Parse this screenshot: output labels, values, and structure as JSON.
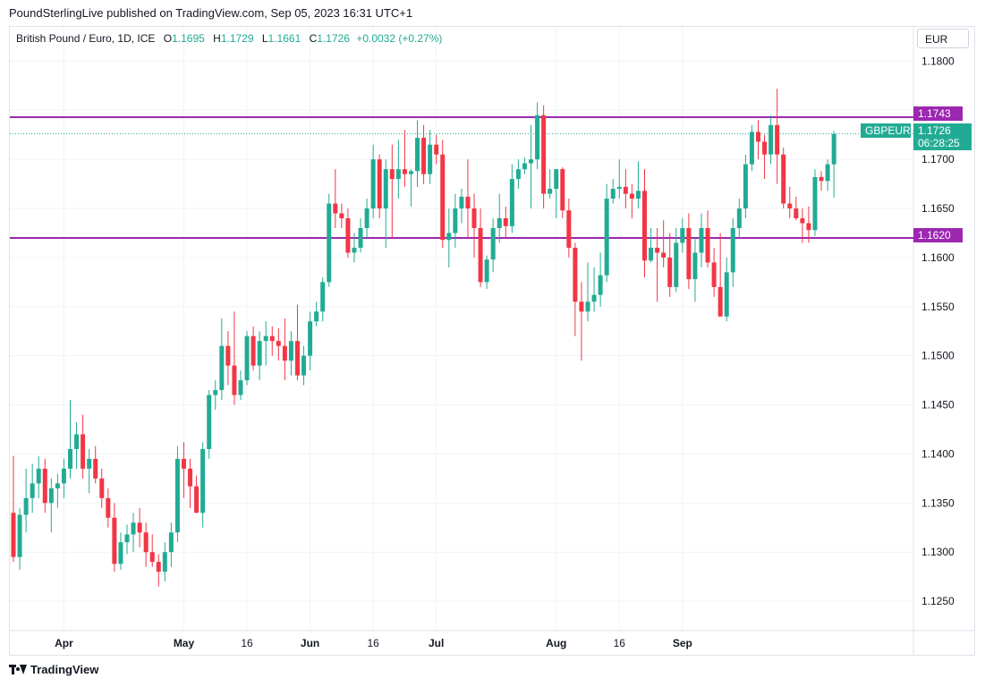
{
  "publisher_line": "PoundSterlingLive published on TradingView.com, Sep 05, 2023 16:31 UTC+1",
  "legend": {
    "symbol": "British Pound / Euro, 1D, ICE",
    "o_label": "O",
    "o_value": "1.1695",
    "h_label": "H",
    "h_value": "1.1729",
    "l_label": "L",
    "l_value": "1.1661",
    "c_label": "C",
    "c_value": "1.1726",
    "change": "+0.0032 (+0.27%)"
  },
  "currency_button": "EUR",
  "footer_brand": "TradingView",
  "price_tags": {
    "resistance": "1.1743",
    "support": "1.1620",
    "symbol_tag": "GBPEUR",
    "last": "1.1726",
    "countdown": "06:28:25"
  },
  "colors": {
    "up": "#22ab94",
    "down": "#f23645",
    "level_line": "#9c27b0",
    "grid": "#f0f3fa"
  },
  "chart_data": {
    "type": "candlestick",
    "title": "British Pound / Euro, 1D, ICE",
    "y_axis_position": "right",
    "ylim": [
      1.122,
      1.1835
    ],
    "y_ticks": [
      "1.1800",
      "1.1750",
      "1.1700",
      "1.1650",
      "1.1600",
      "1.1550",
      "1.1500",
      "1.1450",
      "1.1400",
      "1.1350",
      "1.1300",
      "1.1250"
    ],
    "x_ticks": [
      "Apr",
      "May",
      "16",
      "Jun",
      "16",
      "Jul",
      "Aug",
      "16",
      "Sep"
    ],
    "x_tick_index": [
      8,
      27,
      37,
      47,
      57,
      67,
      86,
      96,
      106
    ],
    "grid": true,
    "horizontal_levels": [
      1.1743,
      1.162
    ],
    "last_price": 1.1726,
    "candles": [
      {
        "o": 1.134,
        "h": 1.1398,
        "l": 1.129,
        "c": 1.1295
      },
      {
        "o": 1.1295,
        "h": 1.1345,
        "l": 1.1282,
        "c": 1.1338
      },
      {
        "o": 1.1338,
        "h": 1.1385,
        "l": 1.132,
        "c": 1.1355
      },
      {
        "o": 1.1355,
        "h": 1.139,
        "l": 1.134,
        "c": 1.137
      },
      {
        "o": 1.137,
        "h": 1.1398,
        "l": 1.1355,
        "c": 1.1385
      },
      {
        "o": 1.1385,
        "h": 1.1395,
        "l": 1.134,
        "c": 1.135
      },
      {
        "o": 1.135,
        "h": 1.1375,
        "l": 1.132,
        "c": 1.1365
      },
      {
        "o": 1.1365,
        "h": 1.138,
        "l": 1.1345,
        "c": 1.137
      },
      {
        "o": 1.137,
        "h": 1.1395,
        "l": 1.1355,
        "c": 1.1385
      },
      {
        "o": 1.1385,
        "h": 1.1455,
        "l": 1.1375,
        "c": 1.1405
      },
      {
        "o": 1.1405,
        "h": 1.1432,
        "l": 1.1385,
        "c": 1.142
      },
      {
        "o": 1.142,
        "h": 1.144,
        "l": 1.1375,
        "c": 1.1385
      },
      {
        "o": 1.1385,
        "h": 1.1405,
        "l": 1.136,
        "c": 1.1395
      },
      {
        "o": 1.1395,
        "h": 1.1408,
        "l": 1.137,
        "c": 1.1375
      },
      {
        "o": 1.1375,
        "h": 1.1385,
        "l": 1.1345,
        "c": 1.1355
      },
      {
        "o": 1.1355,
        "h": 1.1365,
        "l": 1.1325,
        "c": 1.1335
      },
      {
        "o": 1.1335,
        "h": 1.135,
        "l": 1.128,
        "c": 1.1288
      },
      {
        "o": 1.1288,
        "h": 1.132,
        "l": 1.1282,
        "c": 1.131
      },
      {
        "o": 1.131,
        "h": 1.1328,
        "l": 1.1298,
        "c": 1.1318
      },
      {
        "o": 1.1318,
        "h": 1.134,
        "l": 1.13,
        "c": 1.133
      },
      {
        "o": 1.133,
        "h": 1.1345,
        "l": 1.1305,
        "c": 1.132
      },
      {
        "o": 1.132,
        "h": 1.133,
        "l": 1.1285,
        "c": 1.13
      },
      {
        "o": 1.13,
        "h": 1.1318,
        "l": 1.1285,
        "c": 1.129
      },
      {
        "o": 1.129,
        "h": 1.1298,
        "l": 1.1265,
        "c": 1.128
      },
      {
        "o": 1.128,
        "h": 1.131,
        "l": 1.127,
        "c": 1.13
      },
      {
        "o": 1.13,
        "h": 1.133,
        "l": 1.1285,
        "c": 1.132
      },
      {
        "o": 1.132,
        "h": 1.1408,
        "l": 1.131,
        "c": 1.1395
      },
      {
        "o": 1.1395,
        "h": 1.1412,
        "l": 1.1355,
        "c": 1.1385
      },
      {
        "o": 1.1385,
        "h": 1.1395,
        "l": 1.1345,
        "c": 1.1367
      },
      {
        "o": 1.1367,
        "h": 1.1378,
        "l": 1.134,
        "c": 1.134
      },
      {
        "o": 1.134,
        "h": 1.1412,
        "l": 1.1325,
        "c": 1.1405
      },
      {
        "o": 1.1405,
        "h": 1.1465,
        "l": 1.1395,
        "c": 1.146
      },
      {
        "o": 1.146,
        "h": 1.1475,
        "l": 1.1445,
        "c": 1.1465
      },
      {
        "o": 1.1465,
        "h": 1.1538,
        "l": 1.1455,
        "c": 1.151
      },
      {
        "o": 1.151,
        "h": 1.1525,
        "l": 1.147,
        "c": 1.149
      },
      {
        "o": 1.149,
        "h": 1.1545,
        "l": 1.145,
        "c": 1.146
      },
      {
        "o": 1.146,
        "h": 1.1485,
        "l": 1.1455,
        "c": 1.1475
      },
      {
        "o": 1.1475,
        "h": 1.1525,
        "l": 1.147,
        "c": 1.152
      },
      {
        "o": 1.152,
        "h": 1.153,
        "l": 1.1485,
        "c": 1.149
      },
      {
        "o": 1.149,
        "h": 1.1525,
        "l": 1.1475,
        "c": 1.1515
      },
      {
        "o": 1.1515,
        "h": 1.1535,
        "l": 1.149,
        "c": 1.152
      },
      {
        "o": 1.152,
        "h": 1.153,
        "l": 1.15,
        "c": 1.1515
      },
      {
        "o": 1.1515,
        "h": 1.1528,
        "l": 1.1495,
        "c": 1.151
      },
      {
        "o": 1.151,
        "h": 1.1538,
        "l": 1.1475,
        "c": 1.1495
      },
      {
        "o": 1.1495,
        "h": 1.1525,
        "l": 1.148,
        "c": 1.1515
      },
      {
        "o": 1.1515,
        "h": 1.1552,
        "l": 1.1475,
        "c": 1.148
      },
      {
        "o": 1.148,
        "h": 1.151,
        "l": 1.147,
        "c": 1.15
      },
      {
        "o": 1.15,
        "h": 1.1545,
        "l": 1.1485,
        "c": 1.1535
      },
      {
        "o": 1.1535,
        "h": 1.1555,
        "l": 1.153,
        "c": 1.1545
      },
      {
        "o": 1.1545,
        "h": 1.158,
        "l": 1.1535,
        "c": 1.1575
      },
      {
        "o": 1.1575,
        "h": 1.1665,
        "l": 1.157,
        "c": 1.1655
      },
      {
        "o": 1.1655,
        "h": 1.169,
        "l": 1.163,
        "c": 1.1645
      },
      {
        "o": 1.1645,
        "h": 1.1655,
        "l": 1.163,
        "c": 1.164
      },
      {
        "o": 1.164,
        "h": 1.165,
        "l": 1.16,
        "c": 1.1605
      },
      {
        "o": 1.1605,
        "h": 1.1625,
        "l": 1.1595,
        "c": 1.161
      },
      {
        "o": 1.161,
        "h": 1.164,
        "l": 1.1605,
        "c": 1.163
      },
      {
        "o": 1.163,
        "h": 1.166,
        "l": 1.162,
        "c": 1.165
      },
      {
        "o": 1.165,
        "h": 1.1715,
        "l": 1.164,
        "c": 1.17
      },
      {
        "o": 1.17,
        "h": 1.1705,
        "l": 1.164,
        "c": 1.165
      },
      {
        "o": 1.165,
        "h": 1.17,
        "l": 1.161,
        "c": 1.169
      },
      {
        "o": 1.169,
        "h": 1.1715,
        "l": 1.162,
        "c": 1.168
      },
      {
        "o": 1.168,
        "h": 1.172,
        "l": 1.166,
        "c": 1.169
      },
      {
        "o": 1.169,
        "h": 1.173,
        "l": 1.1672,
        "c": 1.1685
      },
      {
        "o": 1.1685,
        "h": 1.169,
        "l": 1.1652,
        "c": 1.1688
      },
      {
        "o": 1.1688,
        "h": 1.174,
        "l": 1.1672,
        "c": 1.1722
      },
      {
        "o": 1.1722,
        "h": 1.1735,
        "l": 1.1675,
        "c": 1.1685
      },
      {
        "o": 1.1685,
        "h": 1.173,
        "l": 1.1675,
        "c": 1.1715
      },
      {
        "o": 1.1715,
        "h": 1.1725,
        "l": 1.1695,
        "c": 1.1705
      },
      {
        "o": 1.1705,
        "h": 1.172,
        "l": 1.161,
        "c": 1.1618
      },
      {
        "o": 1.1618,
        "h": 1.165,
        "l": 1.159,
        "c": 1.1625
      },
      {
        "o": 1.1625,
        "h": 1.1665,
        "l": 1.161,
        "c": 1.165
      },
      {
        "o": 1.165,
        "h": 1.167,
        "l": 1.1635,
        "c": 1.1662
      },
      {
        "o": 1.1662,
        "h": 1.17,
        "l": 1.162,
        "c": 1.165
      },
      {
        "o": 1.165,
        "h": 1.1665,
        "l": 1.16,
        "c": 1.163
      },
      {
        "o": 1.163,
        "h": 1.165,
        "l": 1.157,
        "c": 1.1575
      },
      {
        "o": 1.1575,
        "h": 1.1602,
        "l": 1.1568,
        "c": 1.1598
      },
      {
        "o": 1.1598,
        "h": 1.164,
        "l": 1.1585,
        "c": 1.163
      },
      {
        "o": 1.163,
        "h": 1.1665,
        "l": 1.1615,
        "c": 1.164
      },
      {
        "o": 1.164,
        "h": 1.1652,
        "l": 1.162,
        "c": 1.1632
      },
      {
        "o": 1.1632,
        "h": 1.1695,
        "l": 1.1625,
        "c": 1.168
      },
      {
        "o": 1.168,
        "h": 1.17,
        "l": 1.167,
        "c": 1.169
      },
      {
        "o": 1.169,
        "h": 1.1702,
        "l": 1.1685,
        "c": 1.1696
      },
      {
        "o": 1.1696,
        "h": 1.1735,
        "l": 1.165,
        "c": 1.17
      },
      {
        "o": 1.17,
        "h": 1.1758,
        "l": 1.169,
        "c": 1.1745
      },
      {
        "o": 1.1745,
        "h": 1.1755,
        "l": 1.165,
        "c": 1.1665
      },
      {
        "o": 1.1665,
        "h": 1.169,
        "l": 1.166,
        "c": 1.167
      },
      {
        "o": 1.167,
        "h": 1.169,
        "l": 1.164,
        "c": 1.169
      },
      {
        "o": 1.169,
        "h": 1.1692,
        "l": 1.164,
        "c": 1.1648
      },
      {
        "o": 1.1648,
        "h": 1.166,
        "l": 1.16,
        "c": 1.161
      },
      {
        "o": 1.161,
        "h": 1.1615,
        "l": 1.152,
        "c": 1.1555
      },
      {
        "o": 1.1555,
        "h": 1.1575,
        "l": 1.1495,
        "c": 1.1545
      },
      {
        "o": 1.1545,
        "h": 1.1595,
        "l": 1.1535,
        "c": 1.1555
      },
      {
        "o": 1.1555,
        "h": 1.159,
        "l": 1.1545,
        "c": 1.1562
      },
      {
        "o": 1.1562,
        "h": 1.1605,
        "l": 1.155,
        "c": 1.1582
      },
      {
        "o": 1.1582,
        "h": 1.1675,
        "l": 1.1575,
        "c": 1.166
      },
      {
        "o": 1.166,
        "h": 1.168,
        "l": 1.1655,
        "c": 1.167
      },
      {
        "o": 1.167,
        "h": 1.17,
        "l": 1.166,
        "c": 1.1672
      },
      {
        "o": 1.1672,
        "h": 1.169,
        "l": 1.165,
        "c": 1.1665
      },
      {
        "o": 1.1665,
        "h": 1.1675,
        "l": 1.164,
        "c": 1.166
      },
      {
        "o": 1.166,
        "h": 1.1698,
        "l": 1.165,
        "c": 1.1668
      },
      {
        "o": 1.1668,
        "h": 1.169,
        "l": 1.158,
        "c": 1.1597
      },
      {
        "o": 1.1597,
        "h": 1.163,
        "l": 1.1595,
        "c": 1.161
      },
      {
        "o": 1.161,
        "h": 1.163,
        "l": 1.1555,
        "c": 1.1605
      },
      {
        "o": 1.1605,
        "h": 1.1638,
        "l": 1.159,
        "c": 1.16
      },
      {
        "o": 1.16,
        "h": 1.1625,
        "l": 1.156,
        "c": 1.157
      },
      {
        "o": 1.157,
        "h": 1.163,
        "l": 1.1565,
        "c": 1.1615
      },
      {
        "o": 1.1615,
        "h": 1.164,
        "l": 1.1605,
        "c": 1.163
      },
      {
        "o": 1.163,
        "h": 1.1645,
        "l": 1.1568,
        "c": 1.1578
      },
      {
        "o": 1.1578,
        "h": 1.162,
        "l": 1.1555,
        "c": 1.1605
      },
      {
        "o": 1.1605,
        "h": 1.1645,
        "l": 1.159,
        "c": 1.163
      },
      {
        "o": 1.163,
        "h": 1.1648,
        "l": 1.159,
        "c": 1.1595
      },
      {
        "o": 1.1595,
        "h": 1.161,
        "l": 1.156,
        "c": 1.157
      },
      {
        "o": 1.157,
        "h": 1.1625,
        "l": 1.154,
        "c": 1.154
      },
      {
        "o": 1.154,
        "h": 1.16,
        "l": 1.1535,
        "c": 1.1585
      },
      {
        "o": 1.1585,
        "h": 1.164,
        "l": 1.157,
        "c": 1.163
      },
      {
        "o": 1.163,
        "h": 1.166,
        "l": 1.162,
        "c": 1.165
      },
      {
        "o": 1.165,
        "h": 1.1705,
        "l": 1.164,
        "c": 1.1695
      },
      {
        "o": 1.1695,
        "h": 1.1735,
        "l": 1.1688,
        "c": 1.1728
      },
      {
        "o": 1.1728,
        "h": 1.174,
        "l": 1.17,
        "c": 1.1718
      },
      {
        "o": 1.1718,
        "h": 1.1725,
        "l": 1.168,
        "c": 1.1705
      },
      {
        "o": 1.1705,
        "h": 1.1745,
        "l": 1.1695,
        "c": 1.1735
      },
      {
        "o": 1.1735,
        "h": 1.1772,
        "l": 1.1675,
        "c": 1.1705
      },
      {
        "o": 1.1705,
        "h": 1.1712,
        "l": 1.165,
        "c": 1.1655
      },
      {
        "o": 1.1655,
        "h": 1.1672,
        "l": 1.164,
        "c": 1.165
      },
      {
        "o": 1.165,
        "h": 1.1662,
        "l": 1.1638,
        "c": 1.164
      },
      {
        "o": 1.164,
        "h": 1.165,
        "l": 1.1615,
        "c": 1.1635
      },
      {
        "o": 1.1635,
        "h": 1.1652,
        "l": 1.1615,
        "c": 1.1628
      },
      {
        "o": 1.1628,
        "h": 1.169,
        "l": 1.1622,
        "c": 1.1682
      },
      {
        "o": 1.1682,
        "h": 1.1688,
        "l": 1.1668,
        "c": 1.1678
      },
      {
        "o": 1.1678,
        "h": 1.17,
        "l": 1.1668,
        "c": 1.1695
      },
      {
        "o": 1.1695,
        "h": 1.1729,
        "l": 1.1661,
        "c": 1.1726
      }
    ]
  }
}
